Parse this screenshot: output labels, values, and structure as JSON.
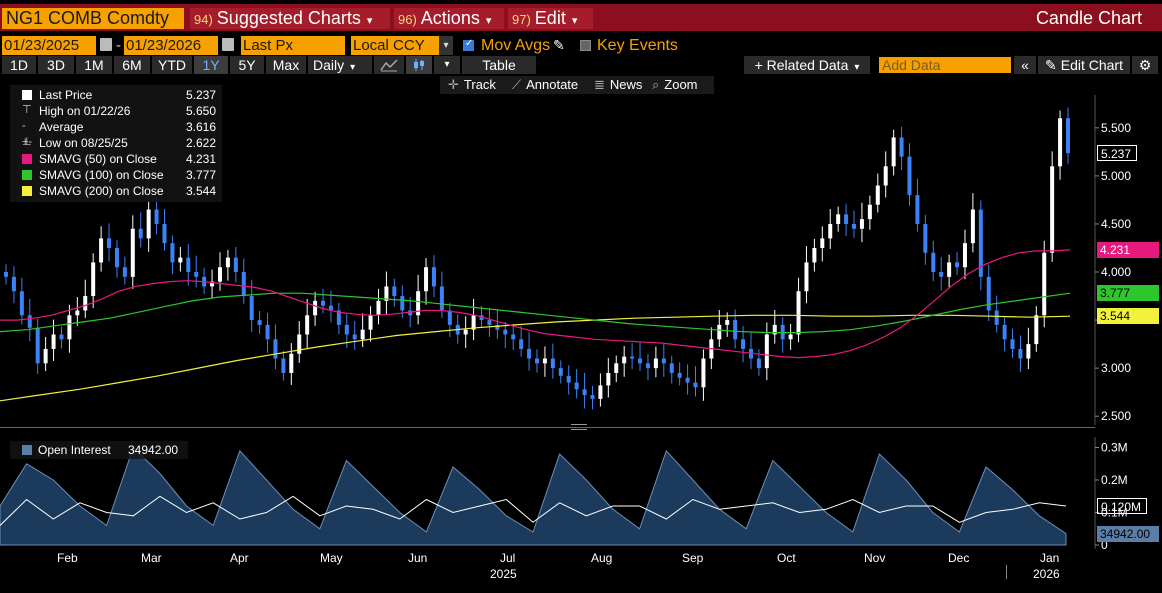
{
  "titlebar": {
    "ticker": "NG1 COMB Comdty",
    "menus": [
      {
        "num": "94)",
        "label": "Suggested Charts"
      },
      {
        "num": "96)",
        "label": "Actions"
      },
      {
        "num": "97)",
        "label": "Edit"
      }
    ],
    "chart_title": "Candle Chart"
  },
  "range": {
    "start_date": "01/23/2025",
    "separator": "-",
    "end_date": "01/23/2026",
    "price_field": "Last Px",
    "currency": "Local CCY",
    "mov_avgs_label": "Mov Avgs",
    "key_events_label": "Key Events"
  },
  "toolbar": {
    "periods": [
      "1D",
      "3D",
      "1M",
      "6M",
      "YTD",
      "1Y",
      "5Y",
      "Max"
    ],
    "active_period": "1Y",
    "frequency": "Daily",
    "table_label": "Table",
    "related_data_label": "+ Related Data",
    "add_data_placeholder": "Add Data",
    "edit_chart_label": "Edit Chart"
  },
  "trackbar": {
    "track_label": "Track",
    "annotate_label": "Annotate",
    "news_label": "News",
    "zoom_label": "Zoom"
  },
  "legend": {
    "rows": [
      {
        "name": "Last Price",
        "value": "5.237",
        "color": "#ffffff"
      },
      {
        "name": "High on 01/22/26",
        "value": "5.650",
        "color": "#cccccc"
      },
      {
        "name": "Average",
        "value": "3.616",
        "color": "#cccccc"
      },
      {
        "name": "Low on 08/25/25",
        "value": "2.622",
        "color": "#cccccc"
      },
      {
        "name": "SMAVG (50)  on Close",
        "value": "4.231",
        "color": "#e6197f"
      },
      {
        "name": "SMAVG (100)  on Close",
        "value": "3.777",
        "color": "#2dc72d"
      },
      {
        "name": "SMAVG (200)  on Close",
        "value": "3.544",
        "color": "#f2f23c"
      }
    ]
  },
  "oi_legend": {
    "name": "Open Interest",
    "value": "34942.00"
  },
  "colors": {
    "title_bg": "#8b0f1e",
    "accent_orange": "#f6a100",
    "candle_up": "#ffffff",
    "candle_down": "#3b82f6",
    "sma50": "#e6197f",
    "sma100": "#2dc72d",
    "sma200": "#f2f23c",
    "oi_fill": "#1c3a5c"
  },
  "price_tags": [
    {
      "value": "5.237",
      "bg": "#000000",
      "fg": "#ffffff",
      "border": "#ffffff"
    },
    {
      "value": "4.231",
      "bg": "#e6197f",
      "fg": "#ffffff"
    },
    {
      "value": "3.777",
      "bg": "#2dc72d",
      "fg": "#000000"
    },
    {
      "value": "3.544",
      "bg": "#f2f23c",
      "fg": "#000000"
    }
  ],
  "oi_tags": [
    {
      "value": "0.120M",
      "bg": "#000000",
      "fg": "#ffffff",
      "border": "#ffffff"
    },
    {
      "value": "34942.00",
      "bg": "#5a7ea6",
      "fg": "#000000"
    }
  ],
  "chart_data": {
    "type": "candlestick",
    "y_ticks": [
      "5.500",
      "5.000",
      "4.500",
      "4.000",
      "3.500",
      "3.000",
      "2.500"
    ],
    "ylim": [
      2.45,
      5.8
    ],
    "oi_y_ticks": [
      "0.3M",
      "0.2M",
      "0.1M",
      "0"
    ],
    "oi_ylim": [
      0,
      0.32
    ],
    "x_months": [
      "Feb",
      "Mar",
      "Apr",
      "May",
      "Jun",
      "Jul",
      "Aug",
      "Sep",
      "Oct",
      "Nov",
      "Dec",
      "Jan"
    ],
    "x_years": [
      "2025",
      "2026"
    ],
    "close_series": [
      3.95,
      3.8,
      3.55,
      3.42,
      3.05,
      3.2,
      3.35,
      3.3,
      3.55,
      3.6,
      3.75,
      4.1,
      4.35,
      4.25,
      4.05,
      3.95,
      4.45,
      4.35,
      4.65,
      4.5,
      4.3,
      4.1,
      4.15,
      4.0,
      3.95,
      3.85,
      3.9,
      4.05,
      4.15,
      4.0,
      3.75,
      3.5,
      3.45,
      3.3,
      3.1,
      2.95,
      3.15,
      3.35,
      3.55,
      3.7,
      3.65,
      3.6,
      3.45,
      3.35,
      3.3,
      3.4,
      3.55,
      3.7,
      3.85,
      3.75,
      3.6,
      3.55,
      3.8,
      4.05,
      3.85,
      3.6,
      3.45,
      3.35,
      3.4,
      3.55,
      3.5,
      3.45,
      3.4,
      3.35,
      3.3,
      3.2,
      3.1,
      3.05,
      3.1,
      3.0,
      2.92,
      2.85,
      2.78,
      2.72,
      2.68,
      2.82,
      2.95,
      3.05,
      3.12,
      3.1,
      3.05,
      3.0,
      3.1,
      3.05,
      2.95,
      2.9,
      2.85,
      2.8,
      3.1,
      3.3,
      3.45,
      3.5,
      3.3,
      3.2,
      3.1,
      3.0,
      3.35,
      3.45,
      3.3,
      3.35,
      3.8,
      4.1,
      4.25,
      4.35,
      4.5,
      4.6,
      4.5,
      4.45,
      4.55,
      4.7,
      4.9,
      5.1,
      5.4,
      5.2,
      4.8,
      4.5,
      4.2,
      4.0,
      3.95,
      4.1,
      4.05,
      4.3,
      4.65,
      3.95,
      3.6,
      3.45,
      3.3,
      3.2,
      3.1,
      3.25,
      3.55,
      4.2,
      5.1,
      5.6,
      5.237
    ],
    "sma50": [
      3.5,
      3.5,
      3.52,
      3.55,
      3.6,
      3.65,
      3.72,
      3.8,
      3.85,
      3.88,
      3.9,
      3.91,
      3.9,
      3.88,
      3.86,
      3.84,
      3.8,
      3.74,
      3.68,
      3.62,
      3.58,
      3.56,
      3.55,
      3.56,
      3.58,
      3.6,
      3.6,
      3.58,
      3.55,
      3.5,
      3.45,
      3.4,
      3.36,
      3.34,
      3.32,
      3.3,
      3.29,
      3.28,
      3.27,
      3.26,
      3.24,
      3.22,
      3.2,
      3.18,
      3.16,
      3.14,
      3.12,
      3.11,
      3.12,
      3.14,
      3.18,
      3.24,
      3.32,
      3.42,
      3.55,
      3.7,
      3.85,
      3.98,
      4.08,
      4.15,
      4.2,
      4.22,
      4.22,
      4.23
    ],
    "sma100": [
      3.38,
      3.4,
      3.44,
      3.48,
      3.52,
      3.58,
      3.64,
      3.7,
      3.74,
      3.76,
      3.78,
      3.78,
      3.76,
      3.74,
      3.72,
      3.7,
      3.67,
      3.64,
      3.61,
      3.58,
      3.55,
      3.52,
      3.49,
      3.46,
      3.44,
      3.42,
      3.4,
      3.38,
      3.37,
      3.37,
      3.38,
      3.4,
      3.44,
      3.49,
      3.55,
      3.61,
      3.66,
      3.7,
      3.74,
      3.78
    ],
    "sma200": [
      2.66,
      2.72,
      2.78,
      2.85,
      2.92,
      3.0,
      3.08,
      3.15,
      3.22,
      3.28,
      3.34,
      3.38,
      3.42,
      3.45,
      3.48,
      3.5,
      3.52,
      3.53,
      3.54,
      3.55,
      3.55,
      3.54,
      3.54,
      3.55,
      3.55,
      3.54,
      3.53,
      3.54
    ],
    "open_interest": [
      0.12,
      0.25,
      0.2,
      0.12,
      0.06,
      0.3,
      0.22,
      0.12,
      0.06,
      0.29,
      0.2,
      0.11,
      0.05,
      0.26,
      0.18,
      0.1,
      0.04,
      0.24,
      0.17,
      0.09,
      0.04,
      0.28,
      0.2,
      0.11,
      0.05,
      0.29,
      0.2,
      0.11,
      0.05,
      0.26,
      0.18,
      0.1,
      0.04,
      0.28,
      0.2,
      0.1,
      0.04,
      0.24,
      0.17,
      0.09,
      0.035
    ],
    "oi_line": [
      0.06,
      0.14,
      0.08,
      0.13,
      0.1,
      0.09,
      0.15,
      0.1,
      0.13,
      0.08,
      0.1,
      0.15,
      0.09,
      0.12,
      0.11,
      0.08,
      0.14,
      0.1,
      0.12,
      0.14,
      0.07,
      0.13,
      0.09,
      0.12,
      0.12,
      0.08,
      0.14,
      0.11,
      0.12,
      0.13,
      0.1,
      0.11,
      0.14,
      0.1,
      0.12,
      0.12,
      0.07,
      0.1,
      0.11,
      0.13,
      0.12
    ]
  }
}
